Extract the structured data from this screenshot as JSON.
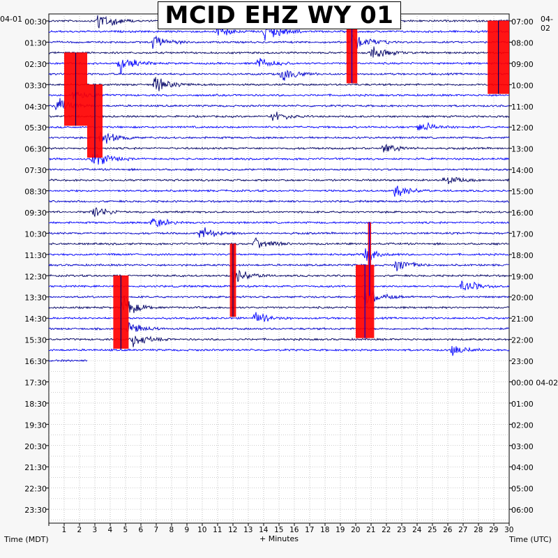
{
  "title": "MCID EHZ WY 01",
  "left_date": "04-01",
  "right_date": "04-02",
  "xlabel": "+ Minutes",
  "left_axis_label": "Time (MDT)",
  "right_axis_label": "Time (UTC)",
  "colors": {
    "trace_cycle": [
      "#000066",
      "#0000ff",
      "#0000cc"
    ],
    "clipped": "#ff0000"
  },
  "chart_data": {
    "type": "helicorder",
    "title": "MCID EHZ WY 01",
    "xlabel": "+ Minutes",
    "xlim": [
      0,
      30
    ],
    "x_ticks": [
      1,
      2,
      3,
      4,
      5,
      6,
      7,
      8,
      9,
      10,
      11,
      12,
      13,
      14,
      15,
      16,
      17,
      18,
      19,
      20,
      21,
      22,
      23,
      24,
      25,
      26,
      27,
      28,
      29,
      30
    ],
    "left_time_labels": [
      "00:30",
      "01:30",
      "02:30",
      "03:30",
      "04:30",
      "05:30",
      "06:30",
      "07:30",
      "08:30",
      "09:30",
      "10:30",
      "11:30",
      "12:30",
      "13:30",
      "14:30",
      "15:30",
      "16:30",
      "17:30",
      "18:30",
      "19:30",
      "20:30",
      "21:30",
      "22:30",
      "23:30"
    ],
    "right_time_labels": [
      "07:00",
      "08:00",
      "09:00",
      "10:00",
      "11:00",
      "12:00",
      "13:00",
      "14:00",
      "15:00",
      "16:00",
      "17:00",
      "18:00",
      "19:00",
      "20:00",
      "21:00",
      "22:00",
      "23:00",
      "00:00 04-02",
      "01:00",
      "02:00",
      "03:00",
      "04:00",
      "05:00",
      "06:00"
    ],
    "minutes_per_line": 30,
    "lines_with_data": 33,
    "last_line_data_end_minute": 2.5,
    "clipped_events": [
      {
        "line": 6,
        "start_min": 1.0,
        "end_min": 2.5
      },
      {
        "line": 9,
        "start_min": 2.5,
        "end_min": 3.5
      },
      {
        "line": 2,
        "start_min": 19.4,
        "end_min": 20.1
      },
      {
        "line": 3,
        "start_min": 28.6,
        "end_min": 30.0
      },
      {
        "line": 27,
        "start_min": 4.2,
        "end_min": 5.2
      },
      {
        "line": 26,
        "start_min": 20.0,
        "end_min": 21.2
      },
      {
        "line": 24,
        "start_min": 11.8,
        "end_min": 12.2
      },
      {
        "line": 22,
        "start_min": 20.8,
        "end_min": 21.0
      }
    ],
    "events": [
      {
        "line": 0,
        "min": 3.2,
        "amp": 2.2
      },
      {
        "line": 1,
        "min": 14.1,
        "amp": 2.0
      },
      {
        "line": 2,
        "min": 19.8,
        "amp": 2.5
      },
      {
        "line": 2,
        "min": 6.8,
        "amp": 1.6
      },
      {
        "line": 3,
        "min": 21.0,
        "amp": 1.4
      },
      {
        "line": 4,
        "min": 4.6,
        "amp": 1.8
      },
      {
        "line": 5,
        "min": 15.2,
        "amp": 1.5
      },
      {
        "line": 6,
        "min": 6.9,
        "amp": 1.4
      },
      {
        "line": 7,
        "min": 1.6,
        "amp": 1.3
      },
      {
        "line": 8,
        "min": 0.5,
        "amp": 1.6
      },
      {
        "line": 11,
        "min": 3.4,
        "amp": 1.8
      },
      {
        "line": 12,
        "min": 21.7,
        "amp": 1.1
      },
      {
        "line": 13,
        "min": 2.9,
        "amp": 2.0
      },
      {
        "line": 15,
        "min": 25.7,
        "amp": 1.2
      },
      {
        "line": 18,
        "min": 2.8,
        "amp": 1.6
      },
      {
        "line": 19,
        "min": 6.7,
        "amp": 1.4
      },
      {
        "line": 20,
        "min": 9.9,
        "amp": 1.6
      },
      {
        "line": 21,
        "min": 13.4,
        "amp": 1.2
      },
      {
        "line": 22,
        "min": 20.6,
        "amp": 1.4
      },
      {
        "line": 23,
        "min": 22.6,
        "amp": 1.5
      },
      {
        "line": 24,
        "min": 12.0,
        "amp": 1.8
      },
      {
        "line": 25,
        "min": 26.9,
        "amp": 1.5
      },
      {
        "line": 26,
        "min": 20.6,
        "amp": 2.0
      },
      {
        "line": 27,
        "min": 4.8,
        "amp": 2.2
      },
      {
        "line": 28,
        "min": 13.4,
        "amp": 1.2
      },
      {
        "line": 29,
        "min": 5.2,
        "amp": 1.2
      },
      {
        "line": 30,
        "min": 5.4,
        "amp": 1.6
      },
      {
        "line": 31,
        "min": 26.3,
        "amp": 1.0
      },
      {
        "line": 32,
        "min": 26.7,
        "amp": 1.2
      },
      {
        "line": 16,
        "min": 22.5,
        "amp": 1.5
      },
      {
        "line": 9,
        "min": 14.6,
        "amp": 1.1
      },
      {
        "line": 10,
        "min": 24.1,
        "amp": 1.2
      },
      {
        "line": 4,
        "min": 13.6,
        "amp": 1.3
      },
      {
        "line": 1,
        "min": 11.0,
        "amp": 1.2
      }
    ]
  }
}
